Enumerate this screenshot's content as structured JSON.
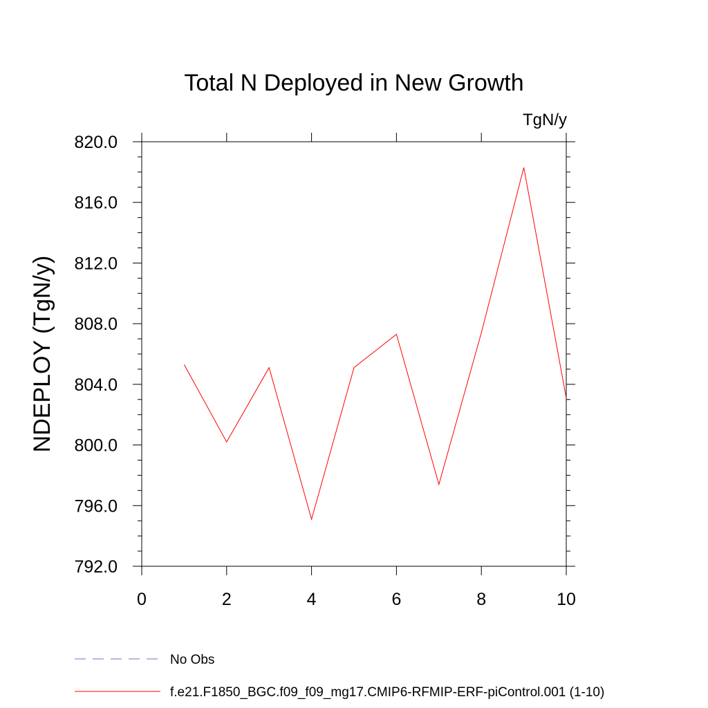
{
  "chart_data": {
    "type": "line",
    "title": "Total N Deployed in New Growth",
    "units": "TgN/y",
    "ylabel": "NDEPLOY  (TgN/y)",
    "xlabel": "",
    "xlim": [
      0,
      10
    ],
    "ylim": [
      792,
      820
    ],
    "x_ticks": [
      0,
      2,
      4,
      6,
      8,
      10
    ],
    "x_tick_labels": [
      "0",
      "2",
      "4",
      "6",
      "8",
      "10"
    ],
    "y_ticks": [
      792,
      796,
      800,
      804,
      808,
      812,
      816,
      820
    ],
    "y_tick_labels": [
      "792.0",
      "796.0",
      "800.0",
      "804.0",
      "808.0",
      "812.0",
      "816.0",
      "820.0"
    ],
    "grid": false,
    "legend_position": "bottom",
    "series": [
      {
        "name": "No Obs",
        "color": "#7b68c8",
        "dash": "dashed",
        "x": [],
        "y": []
      },
      {
        "name": "f.e21.F1850_BGC.f09_f09_mg17.CMIP6-RFMIP-ERF-piControl.001 (1-10)",
        "color": "#ff0000",
        "dash": "solid",
        "x": [
          1,
          2,
          3,
          4,
          5,
          6,
          7,
          8,
          9,
          10
        ],
        "y": [
          805.3,
          800.2,
          805.1,
          795.1,
          805.1,
          807.3,
          797.4,
          807.4,
          818.3,
          803.1
        ]
      }
    ]
  }
}
